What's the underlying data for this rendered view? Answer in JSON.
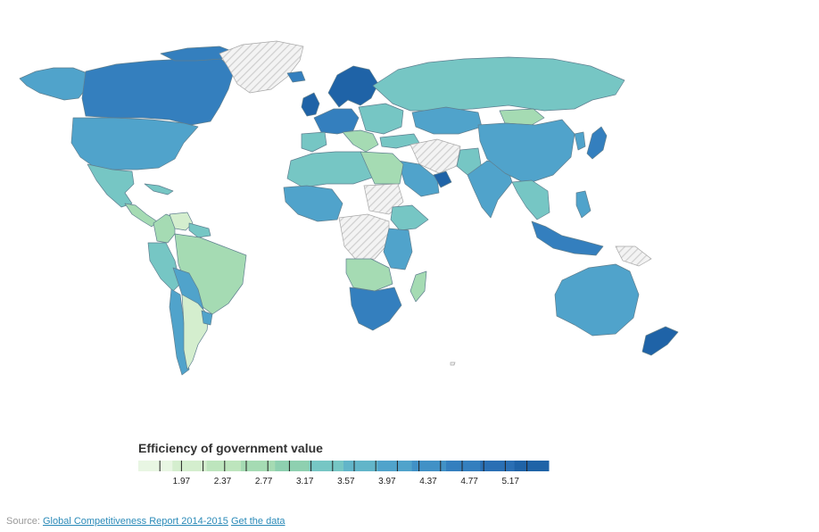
{
  "legend": {
    "title": "Efficiency of government value",
    "ticks": [
      "1.97",
      "2.37",
      "2.77",
      "3.17",
      "3.57",
      "3.97",
      "4.37",
      "4.77",
      "5.17"
    ],
    "colors": [
      "#e8f6e3",
      "#d4eece",
      "#bde5bd",
      "#a5dbb3",
      "#8ed0b0",
      "#76c6c4",
      "#62b5c9",
      "#50a3cb",
      "#4191c6",
      "#347fbe",
      "#2a6fb4",
      "#1f63a7"
    ]
  },
  "colors": {
    "low": "#d4eece",
    "mid_low": "#a5dbb3",
    "mid": "#76c6c4",
    "mid_high": "#50a3cb",
    "high": "#347fbe",
    "highest": "#1f63a7",
    "no_data_hatch": "#d8d8d8"
  },
  "source": {
    "prefix": "Source:",
    "report_link": "Global Competitiveness Report 2014-2015",
    "data_link": "Get the data"
  }
}
